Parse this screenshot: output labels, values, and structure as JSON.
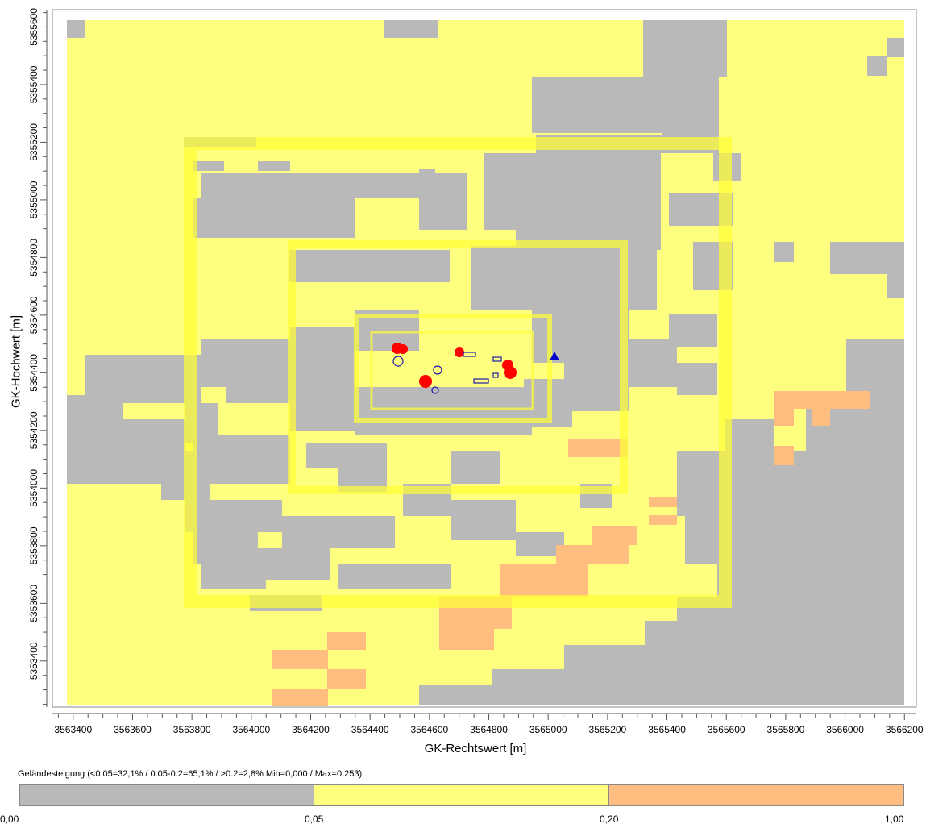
{
  "axes": {
    "xlabel": "GK-Rechtswert [m]",
    "ylabel": "GK-Hochwert [m]",
    "x_ticks": [
      "3563400",
      "3563600",
      "3563800",
      "3564000",
      "3564200",
      "3564400",
      "3564600",
      "3564800",
      "3565000",
      "3565200",
      "3565400",
      "3565600",
      "3565800",
      "3566000",
      "3566200"
    ],
    "y_ticks": [
      "5353400",
      "5353600",
      "5353800",
      "5354000",
      "5354200",
      "5354400",
      "5354600",
      "5354800",
      "5355000",
      "5355200",
      "5355400",
      "5355600"
    ]
  },
  "chart_data": {
    "type": "heatmap",
    "xlabel": "GK-Rechtswert [m]",
    "ylabel": "GK-Hochwert [m]",
    "xlim": [
      3563330,
      3566240
    ],
    "ylim": [
      5353240,
      5355660
    ],
    "x_ticks": [
      3563400,
      3563600,
      3563800,
      3564000,
      3564200,
      3564400,
      3564600,
      3564800,
      3565000,
      3565200,
      3565400,
      3565600,
      3565800,
      3566000,
      3566200
    ],
    "y_ticks": [
      5353400,
      5353600,
      5353800,
      5354000,
      5354200,
      5354400,
      5354600,
      5354800,
      5355000,
      5355200,
      5355400,
      5355600
    ],
    "grid": false,
    "classes": [
      {
        "range": [
          0.0,
          0.05
        ],
        "color": "#b9b9b9"
      },
      {
        "range": [
          0.05,
          0.2
        ],
        "color": "#ffff7f"
      },
      {
        "range": [
          0.2,
          1.0
        ],
        "color": "#ffbd7f"
      }
    ],
    "nested_grids": [
      {
        "x": [
          3563770,
          3565650
        ],
        "y": [
          5353620,
          5355250
        ]
      },
      {
        "x": [
          3564130,
          3565280
        ],
        "y": [
          5354030,
          5354880
        ]
      },
      {
        "x": [
          3564360,
          3565030
        ],
        "y": [
          5354240,
          5354640
        ]
      },
      {
        "x": [
          3564420,
          3564980
        ],
        "y": [
          5354290,
          5354590
        ]
      }
    ],
    "marker": {
      "symbol": "triangle",
      "color": "#0000cc",
      "x": 3565050,
      "y": 5354480
    }
  },
  "legend": {
    "title": "Geländesteigung (<0.05=32,1% / 0.05-0.2=65,1% / >0.2=2,8%   Min=0,000 / Max=0,253)",
    "segments": [
      {
        "color": "#b9b9b9",
        "fraction": 0.3333
      },
      {
        "color": "#ffff7f",
        "fraction": 0.3333
      },
      {
        "color": "#ffbd7f",
        "fraction": 0.3334
      }
    ],
    "ticks": [
      "0,00",
      "0,05",
      "0,20",
      "1,00"
    ]
  }
}
